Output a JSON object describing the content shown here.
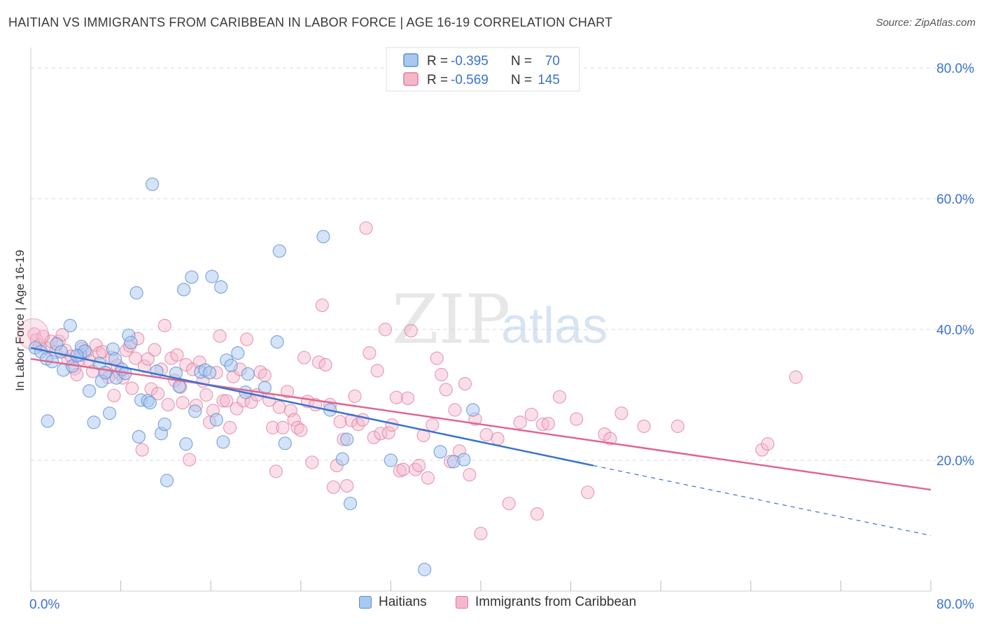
{
  "header": {
    "title": "HAITIAN VS IMMIGRANTS FROM CARIBBEAN IN LABOR FORCE | AGE 16-19 CORRELATION CHART",
    "source": "Source: ZipAtlas.com"
  },
  "watermark": {
    "zip": "ZIP",
    "atlas": "atlas"
  },
  "legend_top": [
    {
      "r_label": "R =",
      "r_value": "-0.395",
      "n_label": "N =",
      "n_value": "70"
    },
    {
      "r_label": "R =",
      "r_value": "-0.569",
      "n_label": "N =",
      "n_value": "145"
    }
  ],
  "legend_bottom": [
    {
      "label": "Haitians"
    },
    {
      "label": "Immigrants from Caribbean"
    }
  ],
  "colors": {
    "blue_fill": "#a9c8ef",
    "blue_stroke": "#5b8fd6",
    "blue_line": "#3a72d1",
    "pink_fill": "#f5b8cb",
    "pink_stroke": "#e07a9c",
    "pink_line": "#e06690",
    "tick_text": "#3a72d1",
    "grid": "#d9d9d9"
  },
  "chart_data": {
    "type": "scatter",
    "title": "HAITIAN VS IMMIGRANTS FROM CARIBBEAN IN LABOR FORCE | AGE 16-19 CORRELATION CHART",
    "ylabel": "In Labor Force | Age 16-19",
    "xlabel": "",
    "xlim": [
      0,
      80
    ],
    "ylim": [
      0,
      80
    ],
    "x_tick_labels": [
      "0.0%",
      "80.0%"
    ],
    "y_ticks": [
      20,
      40,
      60,
      80
    ],
    "y_tick_labels": [
      "20.0%",
      "40.0%",
      "60.0%",
      "80.0%"
    ],
    "grid": "horizontal dashed",
    "series": [
      {
        "name": "Haitians",
        "r": -0.395,
        "n": 70,
        "trend": {
          "x0": 0,
          "y0": 37.2,
          "x1": 50,
          "y1": 19.2,
          "dashed_to_x": 80,
          "dashed_to_y": 8.5
        },
        "points": [
          [
            0.4,
            37.2
          ],
          [
            0.9,
            36.6
          ],
          [
            1.4,
            35.5
          ],
          [
            1.5,
            26.0
          ],
          [
            1.9,
            35.1
          ],
          [
            2.3,
            37.8
          ],
          [
            2.7,
            36.6
          ],
          [
            2.9,
            33.8
          ],
          [
            3.5,
            40.6
          ],
          [
            3.7,
            34.4
          ],
          [
            4.4,
            36.1
          ],
          [
            4.5,
            37.4
          ],
          [
            4.8,
            36.7
          ],
          [
            5.2,
            30.6
          ],
          [
            5.6,
            25.8
          ],
          [
            6.1,
            34.8
          ],
          [
            6.3,
            32.1
          ],
          [
            6.6,
            33.4
          ],
          [
            7.0,
            27.2
          ],
          [
            7.3,
            37.0
          ],
          [
            7.6,
            32.6
          ],
          [
            8.1,
            33.9
          ],
          [
            8.4,
            33.3
          ],
          [
            8.7,
            39.1
          ],
          [
            9.4,
            45.6
          ],
          [
            9.6,
            23.6
          ],
          [
            9.8,
            29.2
          ],
          [
            10.4,
            29.1
          ],
          [
            10.6,
            28.8
          ],
          [
            10.8,
            62.2
          ],
          [
            11.2,
            33.6
          ],
          [
            11.6,
            24.1
          ],
          [
            11.9,
            25.5
          ],
          [
            12.1,
            16.9
          ],
          [
            12.9,
            33.3
          ],
          [
            13.2,
            31.3
          ],
          [
            13.6,
            46.1
          ],
          [
            13.8,
            22.5
          ],
          [
            14.3,
            48.0
          ],
          [
            14.6,
            27.5
          ],
          [
            15.1,
            33.5
          ],
          [
            15.5,
            33.8
          ],
          [
            15.9,
            33.4
          ],
          [
            16.1,
            48.1
          ],
          [
            16.5,
            26.2
          ],
          [
            16.9,
            46.5
          ],
          [
            17.1,
            22.8
          ],
          [
            17.4,
            35.3
          ],
          [
            17.8,
            34.5
          ],
          [
            18.4,
            36.4
          ],
          [
            19.1,
            30.4
          ],
          [
            19.3,
            33.2
          ],
          [
            20.8,
            31.1
          ],
          [
            21.9,
            38.1
          ],
          [
            22.1,
            52.0
          ],
          [
            22.6,
            22.6
          ],
          [
            26.0,
            54.2
          ],
          [
            26.6,
            27.7
          ],
          [
            27.7,
            20.2
          ],
          [
            28.1,
            23.2
          ],
          [
            28.4,
            13.4
          ],
          [
            32.0,
            20.0
          ],
          [
            35.0,
            3.3
          ],
          [
            36.4,
            21.3
          ],
          [
            37.6,
            19.8
          ],
          [
            38.5,
            20.1
          ],
          [
            39.3,
            27.7
          ],
          [
            7.5,
            35.5
          ],
          [
            4.1,
            36.0
          ],
          [
            8.9,
            38.0
          ]
        ]
      },
      {
        "name": "Immigrants from Caribbean",
        "r": -0.569,
        "n": 145,
        "trend": {
          "x0": 0,
          "y0": 35.5,
          "x1": 80,
          "y1": 15.5
        },
        "points": [
          [
            0.3,
            39.3
          ],
          [
            0.5,
            38.4
          ],
          [
            0.8,
            37.6
          ],
          [
            1.1,
            38.9
          ],
          [
            1.4,
            37.1
          ],
          [
            1.8,
            38.2
          ],
          [
            2.2,
            36.5
          ],
          [
            2.5,
            38.2
          ],
          [
            2.8,
            39.2
          ],
          [
            3.1,
            36.8
          ],
          [
            3.3,
            35.4
          ],
          [
            3.6,
            35.9
          ],
          [
            3.9,
            34.0
          ],
          [
            4.1,
            33.1
          ],
          [
            4.3,
            35.4
          ],
          [
            4.6,
            37.1
          ],
          [
            4.9,
            36.5
          ],
          [
            5.2,
            35.2
          ],
          [
            5.5,
            33.6
          ],
          [
            5.8,
            37.6
          ],
          [
            6.1,
            36.4
          ],
          [
            6.4,
            36.6
          ],
          [
            6.7,
            33.4
          ],
          [
            6.9,
            32.7
          ],
          [
            7.2,
            35.7
          ],
          [
            7.4,
            29.9
          ],
          [
            7.7,
            34.5
          ],
          [
            7.9,
            33.3
          ],
          [
            8.2,
            32.6
          ],
          [
            8.5,
            36.8
          ],
          [
            8.8,
            37.5
          ],
          [
            9.0,
            31.0
          ],
          [
            9.3,
            35.6
          ],
          [
            9.5,
            38.6
          ],
          [
            9.9,
            21.6
          ],
          [
            10.1,
            34.4
          ],
          [
            10.4,
            35.5
          ],
          [
            10.7,
            30.9
          ],
          [
            11.0,
            36.9
          ],
          [
            11.3,
            30.2
          ],
          [
            11.6,
            33.9
          ],
          [
            11.9,
            40.6
          ],
          [
            12.2,
            28.5
          ],
          [
            12.5,
            35.6
          ],
          [
            12.8,
            32.2
          ],
          [
            13.0,
            36.1
          ],
          [
            13.3,
            31.2
          ],
          [
            13.5,
            28.8
          ],
          [
            13.8,
            34.6
          ],
          [
            14.1,
            20.1
          ],
          [
            14.4,
            33.9
          ],
          [
            14.7,
            28.4
          ],
          [
            15.0,
            35.0
          ],
          [
            15.3,
            32.1
          ],
          [
            15.6,
            30.0
          ],
          [
            15.9,
            25.8
          ],
          [
            16.2,
            27.6
          ],
          [
            16.5,
            33.4
          ],
          [
            16.8,
            39.0
          ],
          [
            17.1,
            29.1
          ],
          [
            17.4,
            29.1
          ],
          [
            17.7,
            25.0
          ],
          [
            18.0,
            32.8
          ],
          [
            18.3,
            27.9
          ],
          [
            18.6,
            33.9
          ],
          [
            18.9,
            29.1
          ],
          [
            19.2,
            38.5
          ],
          [
            19.6,
            28.9
          ],
          [
            20.1,
            30.0
          ],
          [
            20.4,
            33.5
          ],
          [
            20.8,
            33.0
          ],
          [
            21.2,
            29.2
          ],
          [
            21.5,
            25.0
          ],
          [
            21.8,
            18.3
          ],
          [
            22.1,
            28.1
          ],
          [
            22.4,
            25.0
          ],
          [
            22.8,
            30.5
          ],
          [
            23.1,
            27.6
          ],
          [
            23.4,
            26.2
          ],
          [
            23.7,
            25.0
          ],
          [
            24.0,
            24.6
          ],
          [
            24.3,
            35.7
          ],
          [
            24.6,
            29.0
          ],
          [
            25.0,
            19.7
          ],
          [
            25.3,
            28.5
          ],
          [
            25.6,
            35.0
          ],
          [
            25.9,
            43.7
          ],
          [
            26.2,
            34.6
          ],
          [
            26.6,
            28.5
          ],
          [
            26.9,
            15.9
          ],
          [
            27.2,
            19.2
          ],
          [
            27.5,
            25.9
          ],
          [
            27.8,
            23.2
          ],
          [
            28.1,
            16.1
          ],
          [
            28.5,
            26.1
          ],
          [
            28.8,
            29.8
          ],
          [
            29.1,
            25.5
          ],
          [
            29.5,
            26.2
          ],
          [
            29.8,
            55.5
          ],
          [
            30.1,
            36.4
          ],
          [
            30.5,
            23.5
          ],
          [
            30.8,
            33.7
          ],
          [
            31.1,
            24.1
          ],
          [
            31.5,
            40.0
          ],
          [
            31.8,
            24.2
          ],
          [
            32.1,
            25.4
          ],
          [
            32.5,
            29.6
          ],
          [
            32.8,
            18.4
          ],
          [
            33.1,
            18.6
          ],
          [
            33.5,
            29.5
          ],
          [
            33.8,
            39.8
          ],
          [
            34.2,
            18.6
          ],
          [
            34.5,
            19.2
          ],
          [
            34.9,
            23.8
          ],
          [
            35.3,
            17.3
          ],
          [
            35.7,
            25.4
          ],
          [
            36.1,
            35.6
          ],
          [
            36.5,
            33.1
          ],
          [
            36.9,
            30.8
          ],
          [
            37.3,
            19.8
          ],
          [
            37.7,
            27.7
          ],
          [
            38.1,
            21.4
          ],
          [
            38.6,
            31.7
          ],
          [
            39.0,
            17.8
          ],
          [
            39.5,
            26.3
          ],
          [
            40.5,
            23.9
          ],
          [
            41.5,
            23.3
          ],
          [
            42.5,
            13.4
          ],
          [
            43.5,
            25.8
          ],
          [
            44.5,
            27.0
          ],
          [
            45.0,
            11.8
          ],
          [
            45.5,
            25.5
          ],
          [
            46.0,
            25.6
          ],
          [
            47.0,
            29.7
          ],
          [
            48.5,
            26.3
          ],
          [
            49.5,
            15.1
          ],
          [
            51.0,
            24.0
          ],
          [
            51.5,
            23.3
          ],
          [
            52.5,
            27.2
          ],
          [
            54.5,
            25.2
          ],
          [
            57.5,
            25.2
          ],
          [
            65.0,
            21.6
          ],
          [
            65.5,
            22.5
          ],
          [
            68.0,
            32.7
          ],
          [
            40.0,
            8.8
          ]
        ]
      }
    ]
  }
}
